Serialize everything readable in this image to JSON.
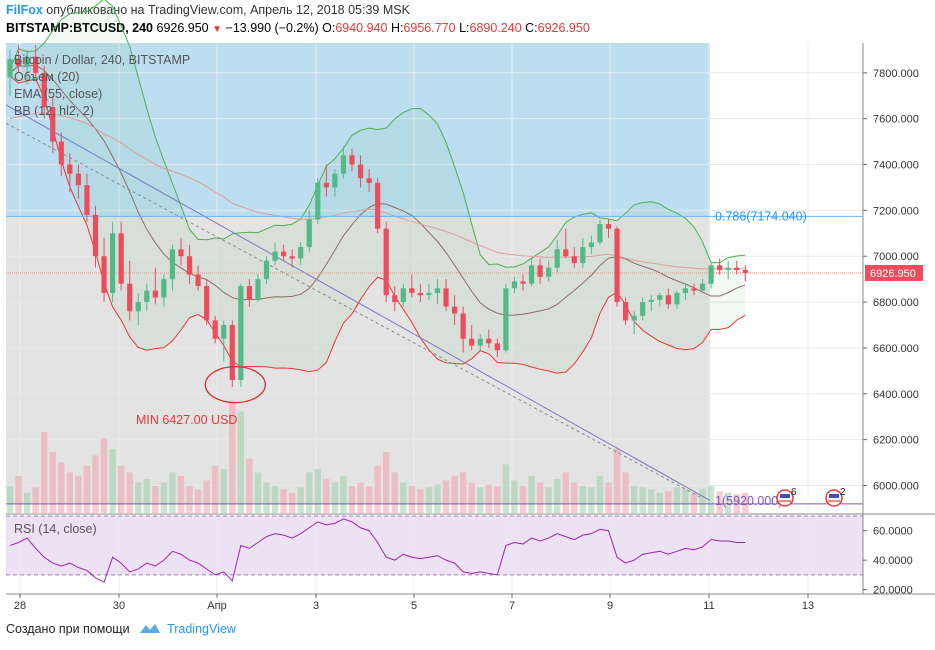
{
  "header": {
    "brand": "FilFox",
    "published": "опубликовано на TradingView.com, Апрель 12, 2018 05:39 MSK",
    "symbol": "BITSTAMP:BTCUSD, 240",
    "last": "6926.950",
    "change": "−13.990 (−0.2%)",
    "o_label": "O:",
    "o": "6940.940",
    "h_label": "H:",
    "h": "6956.770",
    "l_label": "L:",
    "l": "6890.240",
    "c_label": "C:",
    "c": "6926.950"
  },
  "legend": [
    "Bitcoin / Dollar, 240, BITSTAMP",
    "Объем (20)",
    "EMA (55, close)",
    "BB (12, hl2, 2)"
  ],
  "annotations": {
    "min_label": "MIN 6427.00 USD",
    "fib_786": "0.786(7174.040)",
    "fib_1": "1(5920.000)",
    "last_price": "6926.950",
    "event_a": "6",
    "event_b": "2"
  },
  "rsi_label": "RSI (14, close)",
  "footer": {
    "created": "Создано при помощи",
    "brand": "TradingView"
  },
  "colors": {
    "up": "#53b987",
    "down": "#eb4d5c",
    "bb": "#4caf50",
    "lowerband": "#e53935",
    "fill": "#2196f3"
  },
  "chart_data": {
    "type": "candlestick",
    "y_range": [
      5880,
      7930
    ],
    "y_ticks": [
      "7800.000",
      "7600.000",
      "7400.000",
      "7200.000",
      "7000.000",
      "6800.000",
      "6600.000",
      "6400.000",
      "6200.000",
      "6000.000"
    ],
    "x_ticks": [
      "28",
      "30",
      "Апр",
      "3",
      "5",
      "7",
      "9",
      "11",
      "13"
    ],
    "rsi_ticks": [
      "60.0000",
      "40.0000",
      "20.0000"
    ],
    "rsi_range": [
      17,
      70
    ],
    "fib_levels": [
      7174.04,
      5920
    ],
    "candles": [
      [
        7780,
        7900,
        7700,
        7860
      ],
      [
        7860,
        7920,
        7800,
        7830
      ],
      [
        7830,
        7900,
        7750,
        7870
      ],
      [
        7870,
        7920,
        7780,
        7800
      ],
      [
        7800,
        7830,
        7600,
        7650
      ],
      [
        7650,
        7700,
        7450,
        7500
      ],
      [
        7500,
        7540,
        7350,
        7400
      ],
      [
        7400,
        7450,
        7280,
        7360
      ],
      [
        7360,
        7400,
        7250,
        7310
      ],
      [
        7310,
        7360,
        7150,
        7180
      ],
      [
        7180,
        7220,
        6950,
        7000
      ],
      [
        7000,
        7080,
        6800,
        6840
      ],
      [
        6840,
        7150,
        6800,
        7100
      ],
      [
        7100,
        7150,
        6850,
        6880
      ],
      [
        6880,
        6980,
        6720,
        6760
      ],
      [
        6760,
        6840,
        6700,
        6800
      ],
      [
        6800,
        6880,
        6760,
        6850
      ],
      [
        6850,
        6950,
        6790,
        6820
      ],
      [
        6820,
        6920,
        6780,
        6900
      ],
      [
        6900,
        7050,
        6850,
        7030
      ],
      [
        7030,
        7080,
        6960,
        7000
      ],
      [
        7000,
        7050,
        6880,
        6920
      ],
      [
        6920,
        6960,
        6850,
        6870
      ],
      [
        6870,
        6900,
        6700,
        6720
      ],
      [
        6720,
        6740,
        6620,
        6640
      ],
      [
        6640,
        6720,
        6540,
        6700
      ],
      [
        6700,
        6720,
        6430,
        6460
      ],
      [
        6460,
        6880,
        6430,
        6870
      ],
      [
        6870,
        6900,
        6780,
        6810
      ],
      [
        6810,
        6920,
        6800,
        6900
      ],
      [
        6900,
        7000,
        6880,
        6980
      ],
      [
        6980,
        7060,
        6960,
        7020
      ],
      [
        7020,
        7050,
        6980,
        7000
      ],
      [
        7000,
        7030,
        6950,
        6990
      ],
      [
        6990,
        7060,
        6960,
        7040
      ],
      [
        7040,
        7200,
        7020,
        7160
      ],
      [
        7160,
        7340,
        7140,
        7320
      ],
      [
        7320,
        7400,
        7260,
        7300
      ],
      [
        7300,
        7380,
        7260,
        7360
      ],
      [
        7360,
        7480,
        7340,
        7440
      ],
      [
        7440,
        7470,
        7370,
        7400
      ],
      [
        7400,
        7440,
        7300,
        7340
      ],
      [
        7340,
        7380,
        7280,
        7320
      ],
      [
        7320,
        7340,
        7100,
        7120
      ],
      [
        7120,
        7150,
        6800,
        6830
      ],
      [
        6830,
        6870,
        6760,
        6800
      ],
      [
        6800,
        6880,
        6780,
        6860
      ],
      [
        6860,
        6920,
        6820,
        6840
      ],
      [
        6840,
        6880,
        6800,
        6830
      ],
      [
        6830,
        6880,
        6810,
        6840
      ],
      [
        6840,
        6900,
        6790,
        6860
      ],
      [
        6860,
        6900,
        6760,
        6780
      ],
      [
        6780,
        6830,
        6700,
        6750
      ],
      [
        6750,
        6780,
        6580,
        6640
      ],
      [
        6640,
        6700,
        6590,
        6610
      ],
      [
        6610,
        6660,
        6590,
        6640
      ],
      [
        6640,
        6680,
        6600,
        6620
      ],
      [
        6620,
        6640,
        6560,
        6590
      ],
      [
        6590,
        6880,
        6580,
        6860
      ],
      [
        6860,
        6910,
        6840,
        6890
      ],
      [
        6890,
        6920,
        6850,
        6880
      ],
      [
        6880,
        6990,
        6870,
        6960
      ],
      [
        6960,
        6990,
        6880,
        6910
      ],
      [
        6910,
        6980,
        6890,
        6950
      ],
      [
        6950,
        7070,
        6930,
        7030
      ],
      [
        7030,
        7120,
        6990,
        7000
      ],
      [
        7000,
        7040,
        6950,
        6970
      ],
      [
        6970,
        7080,
        6950,
        7040
      ],
      [
        7040,
        7090,
        7010,
        7060
      ],
      [
        7060,
        7160,
        7050,
        7140
      ],
      [
        7140,
        7160,
        7080,
        7120
      ],
      [
        7120,
        7130,
        6780,
        6800
      ],
      [
        6800,
        6820,
        6700,
        6720
      ],
      [
        6720,
        6760,
        6660,
        6740
      ],
      [
        6740,
        6820,
        6720,
        6800
      ],
      [
        6800,
        6830,
        6760,
        6810
      ],
      [
        6810,
        6840,
        6780,
        6830
      ],
      [
        6830,
        6860,
        6770,
        6790
      ],
      [
        6790,
        6850,
        6770,
        6840
      ],
      [
        6840,
        6880,
        6810,
        6860
      ],
      [
        6860,
        6880,
        6830,
        6850
      ],
      [
        6850,
        6900,
        6840,
        6880
      ],
      [
        6880,
        6980,
        6860,
        6960
      ],
      [
        6960,
        6990,
        6920,
        6940
      ],
      [
        6940,
        6980,
        6900,
        6950
      ],
      [
        6950,
        6980,
        6920,
        6940
      ],
      [
        6940,
        6960,
        6890,
        6927
      ]
    ],
    "volumes": [
      40,
      55,
      30,
      38,
      120,
      90,
      75,
      60,
      55,
      70,
      85,
      110,
      95,
      70,
      60,
      45,
      50,
      40,
      45,
      60,
      55,
      40,
      35,
      48,
      70,
      65,
      165,
      150,
      80,
      60,
      45,
      40,
      35,
      30,
      38,
      60,
      65,
      50,
      45,
      55,
      40,
      45,
      40,
      70,
      90,
      60,
      45,
      40,
      35,
      38,
      42,
      48,
      55,
      60,
      45,
      38,
      42,
      40,
      72,
      48,
      40,
      55,
      45,
      38,
      50,
      60,
      45,
      40,
      38,
      55,
      45,
      95,
      60,
      40,
      38,
      35,
      30,
      32,
      38,
      35,
      30,
      36,
      40,
      32,
      30,
      28,
      30
    ],
    "rsi": [
      50,
      52,
      55,
      48,
      42,
      38,
      36,
      38,
      35,
      33,
      28,
      25,
      42,
      38,
      32,
      34,
      38,
      36,
      40,
      46,
      44,
      40,
      38,
      34,
      30,
      32,
      26,
      50,
      48,
      52,
      56,
      58,
      57,
      55,
      58,
      62,
      66,
      64,
      65,
      68,
      66,
      62,
      60,
      52,
      42,
      40,
      44,
      42,
      41,
      42,
      43,
      40,
      38,
      32,
      31,
      32,
      31,
      30,
      50,
      52,
      51,
      55,
      53,
      55,
      58,
      56,
      54,
      57,
      58,
      61,
      60,
      42,
      38,
      40,
      44,
      45,
      46,
      44,
      46,
      48,
      47,
      49,
      54,
      53,
      53,
      52,
      52
    ]
  }
}
